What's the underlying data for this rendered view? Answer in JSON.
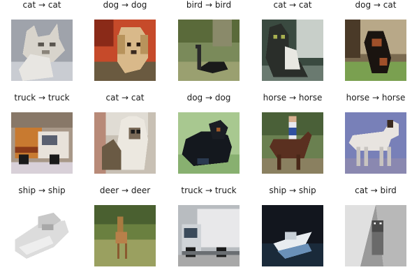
{
  "samples": [
    {
      "label": "cat → cat",
      "icon": "cat-image"
    },
    {
      "label": "dog → dog",
      "icon": "dog-image"
    },
    {
      "label": "bird → bird",
      "icon": "bird-image"
    },
    {
      "label": "cat → cat",
      "icon": "cat-image"
    },
    {
      "label": "dog → cat",
      "icon": "dog-image"
    },
    {
      "label": "truck → truck",
      "icon": "truck-image"
    },
    {
      "label": "cat → cat",
      "icon": "cat-image"
    },
    {
      "label": "dog → dog",
      "icon": "dog-image"
    },
    {
      "label": "horse → horse",
      "icon": "horse-image"
    },
    {
      "label": "horse → horse",
      "icon": "horse-image"
    },
    {
      "label": "ship → ship",
      "icon": "ship-image"
    },
    {
      "label": "deer → deer",
      "icon": "deer-image"
    },
    {
      "label": "truck → truck",
      "icon": "truck-image"
    },
    {
      "label": "ship → ship",
      "icon": "ship-image"
    },
    {
      "label": "cat → bird",
      "icon": "cat-image"
    }
  ]
}
